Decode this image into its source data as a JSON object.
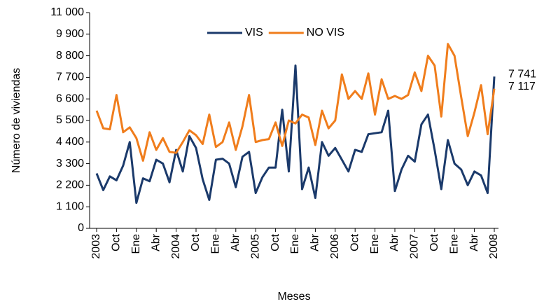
{
  "chart_data": {
    "type": "line",
    "y_label": "Número de viviendas",
    "x_label": "Meses",
    "categories": [
      "2003",
      null,
      null,
      "Oct",
      null,
      null,
      "Ene",
      null,
      null,
      "Abr",
      null,
      null,
      "2004",
      null,
      null,
      "Oct",
      null,
      null,
      "Ene",
      null,
      null,
      "Abr",
      null,
      null,
      "2005",
      null,
      null,
      "Oct",
      null,
      null,
      "Ene",
      null,
      null,
      "Abr",
      null,
      null,
      "2006",
      null,
      null,
      "Oct",
      null,
      null,
      "Ene",
      null,
      null,
      "Abr",
      null,
      null,
      "2007",
      null,
      null,
      "Oct",
      null,
      null,
      "Ene",
      null,
      null,
      "Abr",
      null,
      null,
      "2008"
    ],
    "series": [
      {
        "name": "VIS",
        "color": "#1b3a6b",
        "values": [
          2800,
          1950,
          2650,
          2450,
          3200,
          4400,
          1300,
          2550,
          2400,
          3500,
          3300,
          2350,
          4000,
          2900,
          4700,
          4100,
          2500,
          1450,
          3500,
          3550,
          3300,
          2100,
          3650,
          3900,
          1800,
          2600,
          3100,
          3100,
          6050,
          2900,
          8300,
          2000,
          3100,
          1550,
          4400,
          3700,
          4100,
          3500,
          2900,
          4000,
          3900,
          4800,
          4850,
          4900,
          6000,
          1900,
          3000,
          3700,
          3400,
          5300,
          5800,
          4000,
          2000,
          4500,
          3300,
          3000,
          2200,
          2900,
          2700,
          1800,
          7741
        ],
        "value_labels": [
          null,
          null,
          null,
          null,
          null,
          null,
          null,
          null,
          null,
          null,
          null,
          null,
          null,
          null,
          null,
          null,
          null,
          null,
          null,
          null,
          null,
          null,
          null,
          null,
          null,
          null,
          null,
          null,
          null,
          null,
          null,
          null,
          null,
          null,
          null,
          null,
          null,
          null,
          null,
          null,
          null,
          null,
          null,
          null,
          null,
          null,
          null,
          null,
          null,
          null,
          null,
          null,
          null,
          null,
          null,
          null,
          null,
          null,
          null,
          null,
          "7 741"
        ]
      },
      {
        "name": "NO VIS",
        "color": "#f07d1c",
        "values": [
          6000,
          5100,
          5050,
          6800,
          4900,
          5150,
          4600,
          3450,
          4900,
          4000,
          4600,
          3900,
          3850,
          4400,
          5000,
          4750,
          4300,
          5800,
          4150,
          4400,
          5400,
          4000,
          5200,
          6800,
          4400,
          4500,
          4550,
          5400,
          4200,
          5500,
          5350,
          5800,
          5650,
          4250,
          6000,
          5100,
          5500,
          7850,
          6600,
          7000,
          6600,
          7900,
          5800,
          7600,
          6600,
          6750,
          6600,
          6800,
          7950,
          7000,
          8800,
          8300,
          5700,
          9400,
          8800,
          6700,
          4700,
          5900,
          7300,
          4800,
          7117
        ],
        "value_labels": [
          null,
          null,
          null,
          null,
          null,
          null,
          null,
          null,
          null,
          null,
          null,
          null,
          null,
          null,
          null,
          null,
          null,
          null,
          null,
          null,
          null,
          null,
          null,
          null,
          null,
          null,
          null,
          null,
          null,
          null,
          null,
          null,
          null,
          null,
          null,
          null,
          null,
          null,
          null,
          null,
          null,
          null,
          null,
          null,
          null,
          null,
          null,
          null,
          null,
          null,
          null,
          null,
          null,
          null,
          null,
          null,
          null,
          null,
          null,
          null,
          "7 117"
        ]
      }
    ],
    "ylim": [
      0,
      11000
    ],
    "yticks": [
      0,
      {
        "value": 1100,
        "label": "1 100"
      },
      {
        "value": 2200,
        "label": "2 200"
      },
      {
        "value": 3300,
        "label": "3 300"
      },
      {
        "value": 4400,
        "label": "4 400"
      },
      {
        "value": 5500,
        "label": "5 500"
      },
      {
        "value": 6600,
        "label": "6 600"
      },
      {
        "value": 7700,
        "label": "7 700"
      },
      {
        "value": 8800,
        "label": "8 800"
      },
      {
        "value": 9900,
        "label": "9 900"
      },
      {
        "value": 11000,
        "label": "11 000"
      }
    ],
    "grid": false,
    "legend": "top"
  }
}
